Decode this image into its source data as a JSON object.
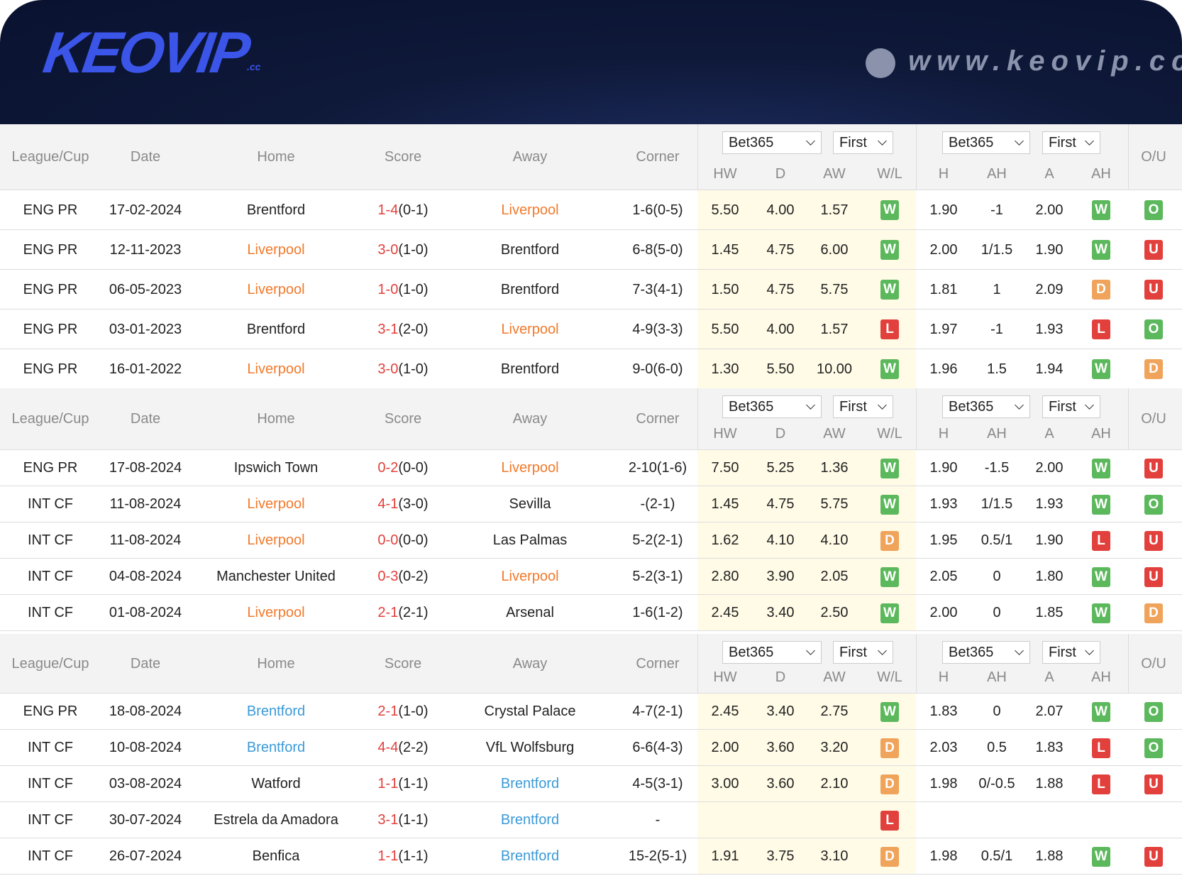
{
  "header": {
    "logo": "KEOVIP",
    "logo_sub": ".cc",
    "site": "www.keovip.cc"
  },
  "columns": [
    "League/Cup",
    "Date",
    "Home",
    "Score",
    "Away",
    "Corner"
  ],
  "bookmaker": "Bet365",
  "period": "First",
  "odds_columns": [
    "HW",
    "D",
    "AW",
    "W/L",
    "H",
    "AH",
    "A",
    "AH"
  ],
  "ou_label": "O/U",
  "badge_colors": {
    "W": "#5cb85c",
    "L": "#e2403c",
    "D": "#f0a35a",
    "O": "#5cb85c",
    "U": "#e2403c"
  },
  "score_color": "#e2403c",
  "tables": [
    {
      "highlight_team": "Liverpool",
      "highlight_color": "#f27a2c",
      "rows": [
        {
          "league": "ENG PR",
          "date": "17-02-2024",
          "home": "Brentford",
          "score": "1-4",
          "ht": "(0-1)",
          "away": "Liverpool",
          "corner": "1-6(0-5)",
          "hw": "5.50",
          "d": "4.00",
          "aw": "1.57",
          "wl": "W",
          "h": "1.90",
          "ah": "-1",
          "a": "2.00",
          "ahr": "W",
          "ou": "O"
        },
        {
          "league": "ENG PR",
          "date": "12-11-2023",
          "home": "Liverpool",
          "score": "3-0",
          "ht": "(1-0)",
          "away": "Brentford",
          "corner": "6-8(5-0)",
          "hw": "1.45",
          "d": "4.75",
          "aw": "6.00",
          "wl": "W",
          "h": "2.00",
          "ah": "1/1.5",
          "a": "1.90",
          "ahr": "W",
          "ou": "U"
        },
        {
          "league": "ENG PR",
          "date": "06-05-2023",
          "home": "Liverpool",
          "score": "1-0",
          "ht": "(1-0)",
          "away": "Brentford",
          "corner": "7-3(4-1)",
          "hw": "1.50",
          "d": "4.75",
          "aw": "5.75",
          "wl": "W",
          "h": "1.81",
          "ah": "1",
          "a": "2.09",
          "ahr": "D",
          "ou": "U"
        },
        {
          "league": "ENG PR",
          "date": "03-01-2023",
          "home": "Brentford",
          "score": "3-1",
          "ht": "(2-0)",
          "away": "Liverpool",
          "corner": "4-9(3-3)",
          "hw": "5.50",
          "d": "4.00",
          "aw": "1.57",
          "wl": "L",
          "h": "1.97",
          "ah": "-1",
          "a": "1.93",
          "ahr": "L",
          "ou": "O"
        },
        {
          "league": "ENG PR",
          "date": "16-01-2022",
          "home": "Liverpool",
          "score": "3-0",
          "ht": "(1-0)",
          "away": "Brentford",
          "corner": "9-0(6-0)",
          "hw": "1.30",
          "d": "5.50",
          "aw": "10.00",
          "wl": "W",
          "h": "1.96",
          "ah": "1.5",
          "a": "1.94",
          "ahr": "W",
          "ou": "D"
        }
      ]
    },
    {
      "highlight_team": "Liverpool",
      "highlight_color": "#f27a2c",
      "rows": [
        {
          "league": "ENG PR",
          "date": "17-08-2024",
          "home": "Ipswich Town",
          "score": "0-2",
          "ht": "(0-0)",
          "away": "Liverpool",
          "corner": "2-10(1-6)",
          "hw": "7.50",
          "d": "5.25",
          "aw": "1.36",
          "wl": "W",
          "h": "1.90",
          "ah": "-1.5",
          "a": "2.00",
          "ahr": "W",
          "ou": "U"
        },
        {
          "league": "INT CF",
          "date": "11-08-2024",
          "home": "Liverpool",
          "score": "4-1",
          "ht": "(3-0)",
          "away": "Sevilla",
          "corner": "-(2-1)",
          "hw": "1.45",
          "d": "4.75",
          "aw": "5.75",
          "wl": "W",
          "h": "1.93",
          "ah": "1/1.5",
          "a": "1.93",
          "ahr": "W",
          "ou": "O"
        },
        {
          "league": "INT CF",
          "date": "11-08-2024",
          "home": "Liverpool",
          "score": "0-0",
          "ht": "(0-0)",
          "away": "Las Palmas",
          "corner": "5-2(2-1)",
          "hw": "1.62",
          "d": "4.10",
          "aw": "4.10",
          "wl": "D",
          "h": "1.95",
          "ah": "0.5/1",
          "a": "1.90",
          "ahr": "L",
          "ou": "U"
        },
        {
          "league": "INT CF",
          "date": "04-08-2024",
          "home": "Manchester United",
          "score": "0-3",
          "ht": "(0-2)",
          "away": "Liverpool",
          "corner": "5-2(3-1)",
          "hw": "2.80",
          "d": "3.90",
          "aw": "2.05",
          "wl": "W",
          "h": "2.05",
          "ah": "0",
          "a": "1.80",
          "ahr": "W",
          "ou": "U"
        },
        {
          "league": "INT CF",
          "date": "01-08-2024",
          "home": "Liverpool",
          "score": "2-1",
          "ht": "(2-1)",
          "away": "Arsenal",
          "corner": "1-6(1-2)",
          "hw": "2.45",
          "d": "3.40",
          "aw": "2.50",
          "wl": "W",
          "h": "2.00",
          "ah": "0",
          "a": "1.85",
          "ahr": "W",
          "ou": "D"
        }
      ]
    },
    {
      "highlight_team": "Brentford",
      "highlight_color": "#3a9ad9",
      "rows": [
        {
          "league": "ENG PR",
          "date": "18-08-2024",
          "home": "Brentford",
          "score": "2-1",
          "ht": "(1-0)",
          "away": "Crystal Palace",
          "corner": "4-7(2-1)",
          "hw": "2.45",
          "d": "3.40",
          "aw": "2.75",
          "wl": "W",
          "h": "1.83",
          "ah": "0",
          "a": "2.07",
          "ahr": "W",
          "ou": "O"
        },
        {
          "league": "INT CF",
          "date": "10-08-2024",
          "home": "Brentford",
          "score": "4-4",
          "ht": "(2-2)",
          "away": "VfL Wolfsburg",
          "corner": "6-6(4-3)",
          "hw": "2.00",
          "d": "3.60",
          "aw": "3.20",
          "wl": "D",
          "h": "2.03",
          "ah": "0.5",
          "a": "1.83",
          "ahr": "L",
          "ou": "O"
        },
        {
          "league": "INT CF",
          "date": "03-08-2024",
          "home": "Watford",
          "score": "1-1",
          "ht": "(1-1)",
          "away": "Brentford",
          "corner": "4-5(3-1)",
          "hw": "3.00",
          "d": "3.60",
          "aw": "2.10",
          "wl": "D",
          "h": "1.98",
          "ah": "0/-0.5",
          "a": "1.88",
          "ahr": "L",
          "ou": "U"
        },
        {
          "league": "INT CF",
          "date": "30-07-2024",
          "home": "Estrela da Amadora",
          "score": "3-1",
          "ht": "(1-1)",
          "away": "Brentford",
          "corner": "-",
          "hw": null,
          "d": null,
          "aw": null,
          "wl": "L",
          "h": null,
          "ah": null,
          "a": null,
          "ahr": null,
          "ou": null
        },
        {
          "league": "INT CF",
          "date": "26-07-2024",
          "home": "Benfica",
          "score": "1-1",
          "ht": "(1-1)",
          "away": "Brentford",
          "corner": "15-2(5-1)",
          "hw": "1.91",
          "d": "3.75",
          "aw": "3.10",
          "wl": "D",
          "h": "1.98",
          "ah": "0.5/1",
          "a": "1.88",
          "ahr": "W",
          "ou": "U"
        }
      ]
    }
  ]
}
